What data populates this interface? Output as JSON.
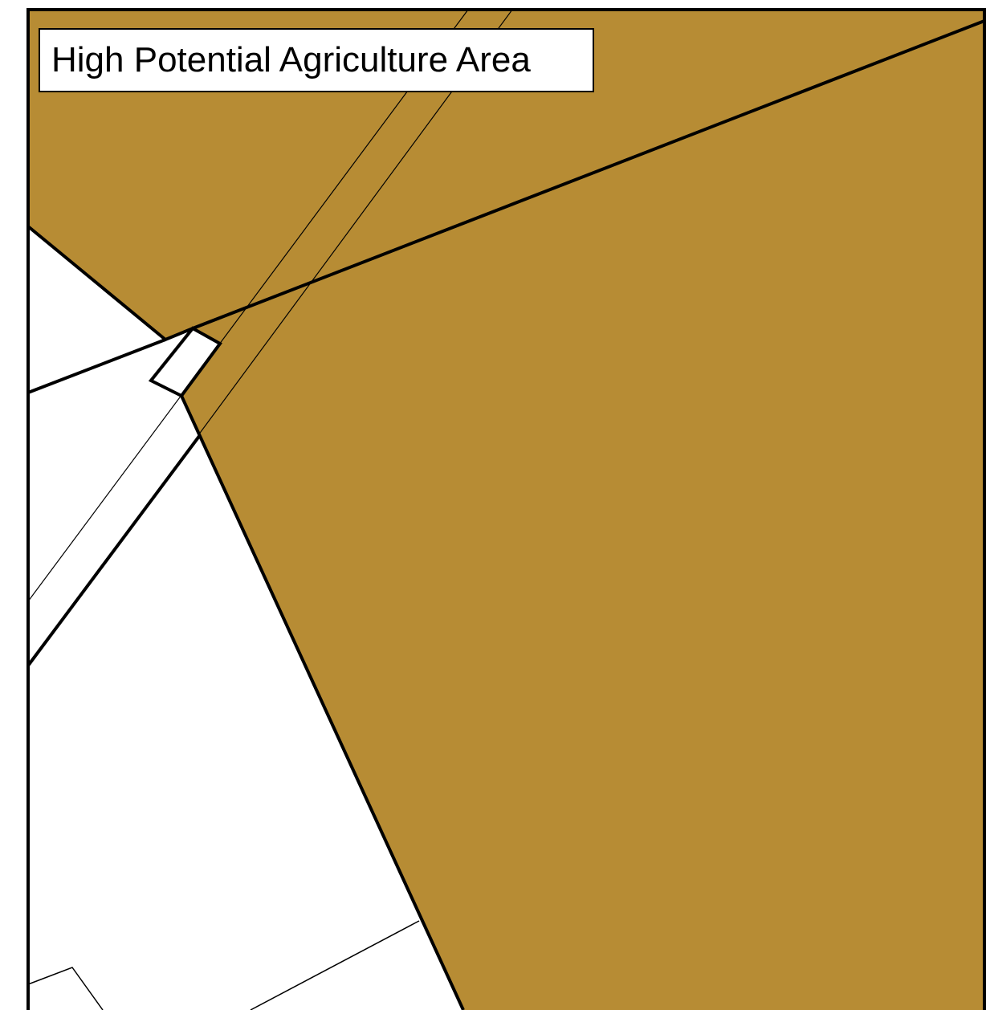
{
  "map": {
    "title": "High Potential Agriculture Area",
    "colors": {
      "agriculture_fill": "#B78C34",
      "background": "#FFFFFF",
      "boundary": "#000000"
    },
    "layers": [
      {
        "name": "High Potential Agriculture Area",
        "fill": "#B78C34"
      },
      {
        "name": "parcel boundaries",
        "stroke": "#000000"
      }
    ]
  }
}
